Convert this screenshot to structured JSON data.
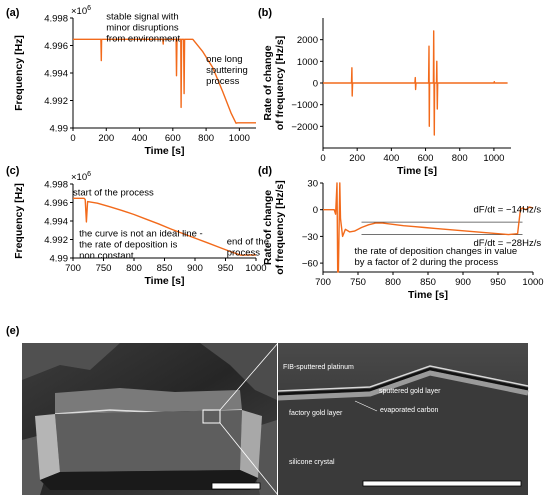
{
  "chart_data": [
    {
      "panel": "(a)",
      "type": "line",
      "xlabel": "Time [s]",
      "ylabel": "Frequency [Hz]",
      "multiplier": "×10",
      "multiplier_exp": "6",
      "xlim": [
        0,
        1100
      ],
      "ylim": [
        4.99,
        4.998
      ],
      "xticks": [
        0,
        200,
        400,
        600,
        800,
        1000
      ],
      "yticks": [
        4.99,
        4.992,
        4.994,
        4.996,
        4.998
      ],
      "yticklabels": [
        "4.99",
        "4.992",
        "4.994",
        "4.996",
        "4.998"
      ],
      "annotations": [
        {
          "lines": [
            "stable signal with",
            "minor disruptions",
            "from environment"
          ],
          "x": 200,
          "y": 4.9979
        },
        {
          "lines": [
            "one long",
            "sputtering",
            "process"
          ],
          "x": 800,
          "y": 4.9948
        }
      ],
      "series": [
        {
          "points": [
            [
              0,
              4.99645
            ],
            [
              168,
              4.99645
            ],
            [
              170,
              4.9949
            ],
            [
              172,
              4.99645
            ],
            [
              540,
              4.99645
            ],
            [
              542,
              4.9961
            ],
            [
              544,
              4.99645
            ],
            [
              620,
              4.99645
            ],
            [
              622,
              4.9938
            ],
            [
              625,
              4.99645
            ],
            [
              648,
              4.99645
            ],
            [
              650,
              4.9915
            ],
            [
              653,
              4.99645
            ],
            [
              665,
              4.99645
            ],
            [
              668,
              4.9925
            ],
            [
              671,
              4.99645
            ],
            [
              720,
              4.99645
            ],
            [
              780,
              4.99555
            ],
            [
              840,
              4.9944
            ],
            [
              900,
              4.99265
            ],
            [
              950,
              4.9911
            ],
            [
              980,
              4.99035
            ],
            [
              990,
              4.99038
            ],
            [
              1100,
              4.99038
            ]
          ]
        }
      ]
    },
    {
      "panel": "(b)",
      "type": "line",
      "xlabel": "Time [s]",
      "ylabel_lines": [
        "Rate of change",
        "of frequency [Hz/s]"
      ],
      "xlim": [
        0,
        1100
      ],
      "ylim": [
        -3000,
        3000
      ],
      "xticks": [
        0,
        200,
        400,
        600,
        800,
        1000
      ],
      "yticks": [
        -2000,
        -1000,
        0,
        1000,
        2000
      ],
      "yticklabels": [
        "−2000",
        "−1000",
        "0",
        "1000",
        "2000"
      ],
      "series": [
        {
          "points": [
            [
              0,
              0
            ],
            [
              167,
              0
            ],
            [
              169,
              700
            ],
            [
              171,
              -600
            ],
            [
              173,
              0
            ],
            [
              538,
              0
            ],
            [
              540,
              250
            ],
            [
              542,
              -300
            ],
            [
              544,
              0
            ],
            [
              618,
              0
            ],
            [
              620,
              1700
            ],
            [
              622,
              -2000
            ],
            [
              624,
              0
            ],
            [
              646,
              0
            ],
            [
              648,
              2400
            ],
            [
              651,
              -2400
            ],
            [
              653,
              0
            ],
            [
              664,
              0
            ],
            [
              666,
              1000
            ],
            [
              669,
              -1200
            ],
            [
              671,
              0
            ],
            [
              1000,
              0
            ],
            [
              1002,
              60
            ],
            [
              1004,
              0
            ],
            [
              1080,
              0
            ]
          ]
        }
      ]
    },
    {
      "panel": "(c)",
      "type": "line",
      "xlabel": "Time [s]",
      "ylabel": "Frequency [Hz]",
      "multiplier": "×10",
      "multiplier_exp": "6",
      "xlim": [
        700,
        1000
      ],
      "ylim": [
        4.99,
        4.998
      ],
      "xticks": [
        700,
        750,
        800,
        850,
        900,
        950,
        1000
      ],
      "yticks": [
        4.99,
        4.992,
        4.994,
        4.996,
        4.998
      ],
      "yticklabels": [
        "4.99",
        "4.992",
        "4.994",
        "4.996",
        "4.998"
      ],
      "annotations": [
        {
          "lines": [
            "start of the process"
          ],
          "x": 700,
          "y": 4.99675
        },
        {
          "lines": [
            "the curve is not an ideal line -",
            "the rate of deposition is",
            "non constant"
          ],
          "x": 710,
          "y": 4.9923
        },
        {
          "lines": [
            "end of the",
            "process"
          ],
          "x": 952,
          "y": 4.99145
        }
      ],
      "series": [
        {
          "points": [
            [
              700,
              4.99645
            ],
            [
              718,
              4.99645
            ],
            [
              720,
              4.99632
            ],
            [
              722,
              4.9939
            ],
            [
              724,
              4.9961
            ],
            [
              740,
              4.99592
            ],
            [
              760,
              4.99555
            ],
            [
              780,
              4.99515
            ],
            [
              800,
              4.9947
            ],
            [
              820,
              4.9942
            ],
            [
              840,
              4.9937
            ],
            [
              860,
              4.99315
            ],
            [
              880,
              4.99265
            ],
            [
              900,
              4.99215
            ],
            [
              920,
              4.99165
            ],
            [
              940,
              4.99115
            ],
            [
              960,
              4.99065
            ],
            [
              975,
              4.9903
            ],
            [
              985,
              4.99032
            ],
            [
              1000,
              4.99032
            ]
          ]
        }
      ]
    },
    {
      "panel": "(d)",
      "type": "line",
      "xlabel": "Time [s]",
      "ylabel_lines": [
        "Rate of change",
        "of frequency [Hz/s]"
      ],
      "xlim": [
        700,
        1000
      ],
      "ylim": [
        -70,
        30
      ],
      "xticks": [
        700,
        750,
        800,
        850,
        900,
        950,
        1000
      ],
      "yticks": [
        -60,
        -30,
        0,
        30
      ],
      "yticklabels": [
        "−60",
        "−30",
        "0",
        "30"
      ],
      "annotations": [
        {
          "lines": [
            "dF/dt =  −14Hz/s"
          ],
          "x": 915,
          "y": -3
        },
        {
          "lines": [
            "dF/dt =  −28Hz/s"
          ],
          "x": 915,
          "y": -41
        },
        {
          "lines": [
            "the rate of deposition changes in value",
            "by a factor of 2 during the process"
          ],
          "x": 745,
          "y": -50
        }
      ],
      "reference_lines": [
        -14,
        -28
      ],
      "series": [
        {
          "points": [
            [
              700,
              0
            ],
            [
              716,
              0
            ],
            [
              718,
              -5
            ],
            [
              720,
              30
            ],
            [
              721,
              -70
            ],
            [
              722,
              -70
            ],
            [
              724,
              30
            ],
            [
              725,
              -10
            ],
            [
              728,
              -30
            ],
            [
              732,
              -22
            ],
            [
              738,
              -25
            ],
            [
              745,
              -24
            ],
            [
              755,
              -20
            ],
            [
              765,
              -17
            ],
            [
              775,
              -15
            ],
            [
              785,
              -15
            ],
            [
              795,
              -16
            ],
            [
              805,
              -17
            ],
            [
              815,
              -18
            ],
            [
              830,
              -19
            ],
            [
              845,
              -20
            ],
            [
              860,
              -21
            ],
            [
              875,
              -22
            ],
            [
              890,
              -23
            ],
            [
              905,
              -24
            ],
            [
              920,
              -25
            ],
            [
              935,
              -26
            ],
            [
              950,
              -27
            ],
            [
              965,
              -28
            ],
            [
              978,
              -27
            ],
            [
              982,
              0
            ],
            [
              985,
              2
            ],
            [
              990,
              0
            ],
            [
              995,
              3
            ],
            [
              1000,
              2
            ]
          ]
        }
      ]
    }
  ],
  "panel_e": {
    "label": "(e)",
    "micro_labels": [
      "FIB-sputtered platinum",
      "sputtered gold layer",
      "factory gold layer",
      "evaporated carbon",
      "silicone crystal"
    ]
  }
}
